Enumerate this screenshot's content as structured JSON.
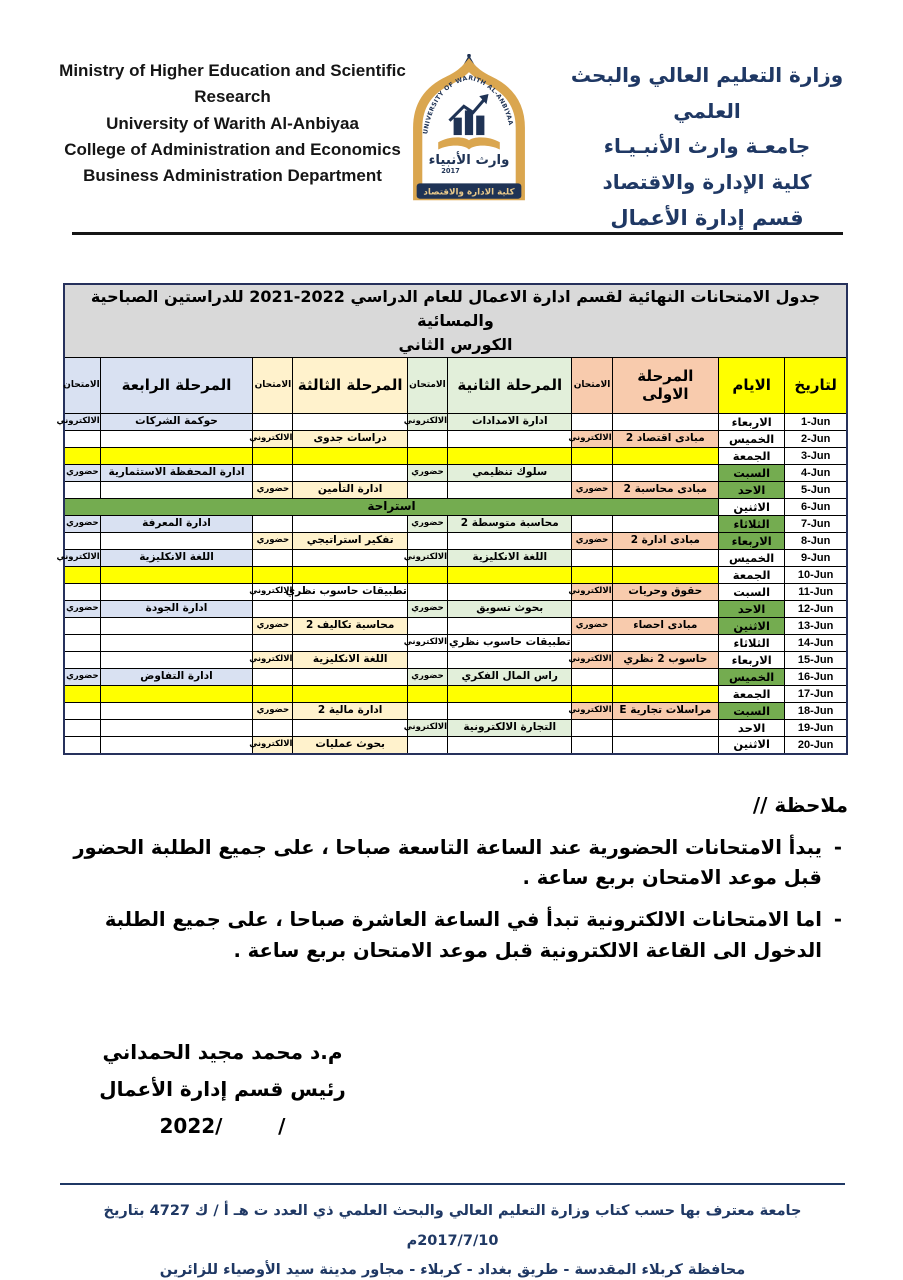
{
  "header": {
    "english_lines": [
      "Ministry of Higher Education and Scientific Research",
      "University of Warith Al-Anbiyaa",
      "College of Administration and Economics",
      "Business Administration Department"
    ],
    "arabic_lines": [
      "وزارة التعليم العالي والبحث العلمي",
      "جامعـة وارث الأنبـيـاء",
      "كلية الإدارة والاقتصاد",
      "قسم إدارة الأعمال"
    ],
    "logo": {
      "curved_text": "UNIVERSITY OF WARITH AL-ANBIYAA",
      "calligraphy": "وارث الأنبياء",
      "year": "2017",
      "banner": "كلية الادارة والاقتصاد"
    }
  },
  "table": {
    "title_line1": "جدول الامتحانات النهائية لقسم ادارة الاعمال للعام الدراسي 2022-2021 للدراستين الصباحية والمسائية",
    "title_line2": "الكورس الثاني",
    "columns": {
      "date": "لتاريخ",
      "day": "الايام",
      "stage1": "المرحلة الاولى",
      "stage2": "المرحلة الثانية",
      "stage3": "المرحلة الثالثة",
      "stage4": "المرحلة الرابعة",
      "exam": "الامتحان"
    },
    "exam_types": {
      "electronic": "الالكتروني",
      "in_person": "حضوري"
    },
    "break_label": "استراحة",
    "rows": [
      {
        "date": "1-Jun",
        "day": "الاربعاء",
        "day_green": false,
        "type": "normal",
        "s1": null,
        "s2": {
          "subject": "ادارة الامدادات",
          "exam": "الالكتروني",
          "tint": true
        },
        "s3": null,
        "s4": {
          "subject": "حوكمة الشركات",
          "exam": "الالكتروني",
          "tint": true
        }
      },
      {
        "date": "2-Jun",
        "day": "الخميس",
        "day_green": false,
        "type": "normal",
        "s1": {
          "subject": "مبادى اقتصاد 2",
          "exam": "الالكتروني",
          "tint": true
        },
        "s2": null,
        "s3": {
          "subject": "دراسات جدوى",
          "exam": "الالكتروني",
          "tint": true
        },
        "s4": null
      },
      {
        "date": "3-Jun",
        "day": "الجمعة",
        "day_green": false,
        "type": "holiday"
      },
      {
        "date": "4-Jun",
        "day": "السبت",
        "day_green": true,
        "type": "normal",
        "s1": null,
        "s2": {
          "subject": "سلوك تنظيمي",
          "exam": "حضوري",
          "tint": true
        },
        "s3": null,
        "s4": {
          "subject": "ادارة المحفظة الاستثمارية",
          "exam": "حضوري",
          "tint": true
        }
      },
      {
        "date": "5-Jun",
        "day": "الاحد",
        "day_green": true,
        "type": "normal",
        "s1": {
          "subject": "مبادى محاسبة 2",
          "exam": "حضوري",
          "tint": true
        },
        "s2": null,
        "s3": {
          "subject": "ادارة التأمين",
          "exam": "حضوري",
          "tint": true
        },
        "s4": null
      },
      {
        "date": "6-Jun",
        "day": "الاثنين",
        "day_green": false,
        "type": "break"
      },
      {
        "date": "7-Jun",
        "day": "الثلاثاء",
        "day_green": true,
        "type": "normal",
        "s1": null,
        "s2": {
          "subject": "محاسبة متوسطة 2",
          "exam": "حضوري",
          "tint": true
        },
        "s3": null,
        "s4": {
          "subject": "ادارة المعرفة",
          "exam": "حضوري",
          "tint": true
        }
      },
      {
        "date": "8-Jun",
        "day": "الاربعاء",
        "day_green": true,
        "type": "normal",
        "s1": {
          "subject": "مبادى ادارة 2",
          "exam": "حضوري",
          "tint": true
        },
        "s2": null,
        "s3": {
          "subject": "تفكير استراتيجي",
          "exam": "حضوري",
          "tint": true
        },
        "s4": null
      },
      {
        "date": "9-Jun",
        "day": "الخميس",
        "day_green": false,
        "type": "normal",
        "s1": null,
        "s2": {
          "subject": "اللغة الانكليزية",
          "exam": "الالكتروني",
          "tint": true
        },
        "s3": null,
        "s4": {
          "subject": "اللغة الانكليزية",
          "exam": "الالكتروني",
          "tint": true
        }
      },
      {
        "date": "10-Jun",
        "day": "الجمعة",
        "day_green": false,
        "type": "holiday"
      },
      {
        "date": "11-Jun",
        "day": "السبت",
        "day_green": false,
        "type": "normal",
        "s1": {
          "subject": "حقوق وحريات",
          "exam": "الالكتروني",
          "tint": true
        },
        "s2": null,
        "s3": {
          "subject": "تطبيقات حاسوب نظري",
          "exam": "الالكتروني",
          "tint": false
        },
        "s4": null
      },
      {
        "date": "12-Jun",
        "day": "الاحد",
        "day_green": true,
        "type": "normal",
        "s1": null,
        "s2": {
          "subject": "بحوث تسويق",
          "exam": "حضوري",
          "tint": true
        },
        "s3": null,
        "s4": {
          "subject": "ادارة الجودة",
          "exam": "حضوري",
          "tint": true
        }
      },
      {
        "date": "13-Jun",
        "day": "الاثنين",
        "day_green": true,
        "type": "normal",
        "s1": {
          "subject": "مبادى احصاء",
          "exam": "حضوري",
          "tint": true
        },
        "s2": null,
        "s3": {
          "subject": "محاسبة تكاليف 2",
          "exam": "حضوري",
          "tint": true
        },
        "s4": null
      },
      {
        "date": "14-Jun",
        "day": "الثلاثاء",
        "day_green": false,
        "type": "normal",
        "s1": null,
        "s2": {
          "subject": "تطبيقات حاسوب نظري",
          "exam": "الالكتروني",
          "tint": false
        },
        "s3": null,
        "s4": null
      },
      {
        "date": "15-Jun",
        "day": "الاربعاء",
        "day_green": false,
        "type": "normal",
        "s1": {
          "subject": "حاسوب 2 نظري",
          "exam": "الالكتروني",
          "tint": true
        },
        "s2": null,
        "s3": {
          "subject": "اللغة الانكليزية",
          "exam": "الالكتروني",
          "tint": true
        },
        "s4": null
      },
      {
        "date": "16-Jun",
        "day": "الخميس",
        "day_green": true,
        "type": "normal",
        "s1": null,
        "s2": {
          "subject": "راس المال الفكري",
          "exam": "حضوري",
          "tint": true
        },
        "s3": null,
        "s4": {
          "subject": "ادارة التفاوض",
          "exam": "حضوري",
          "tint": true
        }
      },
      {
        "date": "17-Jun",
        "day": "الجمعة",
        "day_green": false,
        "type": "holiday"
      },
      {
        "date": "18-Jun",
        "day": "السبت",
        "day_green": true,
        "type": "normal",
        "s1": {
          "subject": "مراسلات تجارية E",
          "exam": "الالكتروني",
          "tint": true
        },
        "s2": null,
        "s3": {
          "subject": "ادارة مالية 2",
          "exam": "حضوري",
          "tint": true
        },
        "s4": null
      },
      {
        "date": "19-Jun",
        "day": "الاحد",
        "day_green": false,
        "type": "normal",
        "s1": null,
        "s2": {
          "subject": "التجارة الالكترونية",
          "exam": "الالكتروني",
          "tint": true
        },
        "s3": null,
        "s4": null
      },
      {
        "date": "20-Jun",
        "day": "الاثنين",
        "day_green": false,
        "type": "normal",
        "s1": null,
        "s2": null,
        "s3": {
          "subject": "بحوث عمليات",
          "exam": "الالكتروني",
          "tint": true
        },
        "s4": null
      }
    ]
  },
  "notes": {
    "heading": "ملاحظة //",
    "bullet": "-",
    "items": [
      "يبدأ الامتحانات الحضورية عند الساعة التاسعة صباحا ، على جميع الطلبة الحضور قبل موعد الامتحان بربع ساعة .",
      "اما الامتحانات الالكترونية تبدأ في الساعة العاشرة صباحا ، على جميع الطلبة الدخول الى القاعة الالكترونية قبل موعد الامتحان بربع ساعة ."
    ]
  },
  "signature": {
    "name": "م.د محمد مجيد الحمداني",
    "title": "رئيس قسم إدارة الأعمال",
    "date_line": "2022/        /"
  },
  "footer": {
    "line1": "جامعة معترف بها حسب كتاب وزارة التعليم العالي والبحث العلمي  ذي  العدد ت  هـ  أ / ك 4727  بتاريخ  2017/7/10م",
    "line2": "محافظة كربلاء المقدسة  - طريق بغداد - كربلاء  -  مجاور مدينة سيد الأوصياء للزائرين"
  },
  "colors": {
    "navy": "#1F3864",
    "stage1_peach": "#F8CBAD",
    "stage2_green": "#E2EFDA",
    "stage3_cream": "#FFF2CC",
    "stage4_lavender": "#D9E1F2",
    "weekend_green": "#74AC50",
    "holiday_yellow": "#FFFF00",
    "title_gray": "#D9D9D9"
  }
}
